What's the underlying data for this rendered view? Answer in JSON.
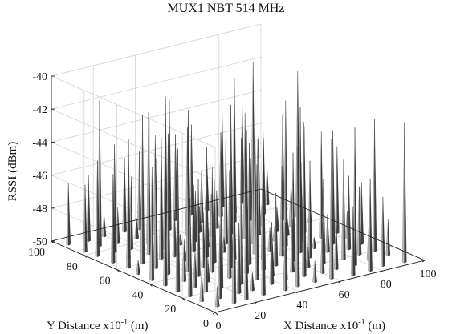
{
  "chart_data": {
    "type": "surface3d",
    "title": "MUX1 NBT 514 MHz",
    "zlabel": "RSSI (dBm)",
    "xlabel": "X Distance x10",
    "xlabel_exp": "-1",
    "xlabel_unit": " (m)",
    "ylabel": "Y Distance x10",
    "ylabel_exp": "-1",
    "ylabel_unit": " (m)",
    "xlim": [
      0,
      100
    ],
    "ylim": [
      0,
      100
    ],
    "zlim": [
      -50,
      -40
    ],
    "x_ticks": [
      "0",
      "20",
      "40",
      "60",
      "80",
      "100"
    ],
    "y_ticks": [
      "0",
      "20",
      "40",
      "60",
      "80",
      "100"
    ],
    "z_ticks": [
      "-40",
      "-42",
      "-44",
      "-46",
      "-48",
      "-50"
    ],
    "grid": true,
    "spike_spacing": 8,
    "z_range_of_spikes": [
      -50,
      -40.8
    ]
  }
}
